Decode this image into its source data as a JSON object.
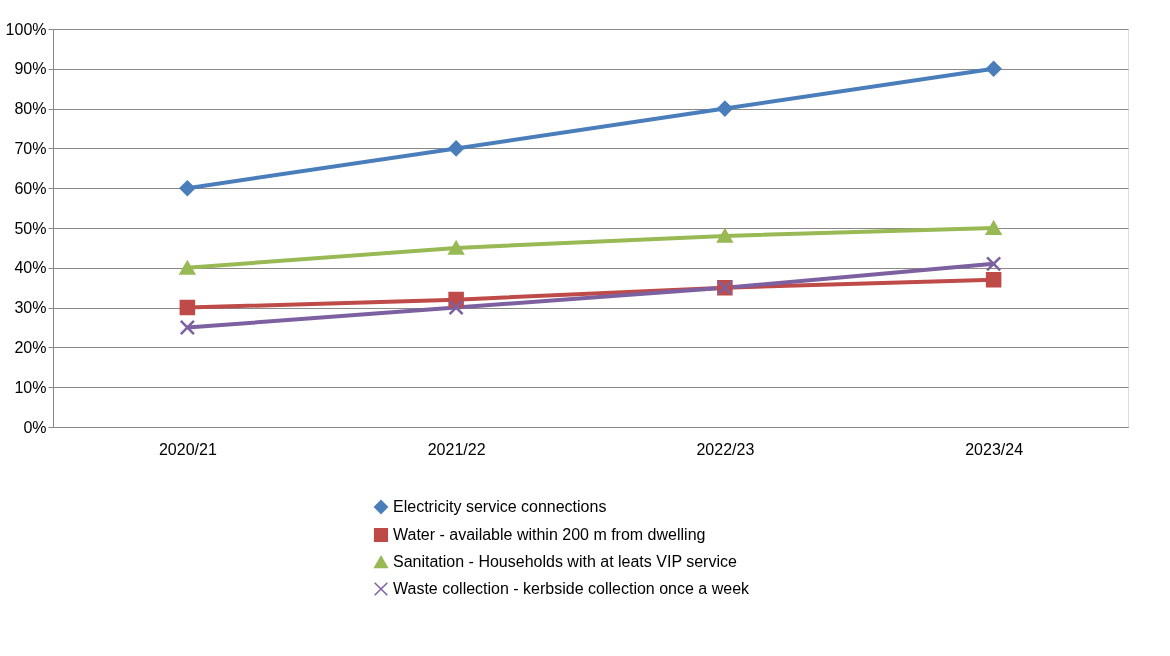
{
  "chart_data": {
    "type": "line",
    "categories": [
      "2020/21",
      "2021/22",
      "2022/23",
      "2023/24"
    ],
    "series": [
      {
        "name": "Electricity  service connections",
        "color": "#4a7ebb",
        "marker": "diamond",
        "values": [
          60,
          70,
          80,
          90
        ]
      },
      {
        "name": "Water - available within 200 m from dwelling",
        "color": "#be4b48",
        "marker": "square",
        "values": [
          30,
          32,
          35,
          37
        ]
      },
      {
        "name": "Sanitation - Households with at leats VIP service",
        "color": "#98b954",
        "marker": "triangle",
        "values": [
          40,
          45,
          48,
          50
        ]
      },
      {
        "name": "Waste collection - kerbside collection once a week",
        "color": "#7d60a0",
        "marker": "cross",
        "values": [
          25,
          30,
          35,
          41
        ]
      }
    ],
    "ylim": [
      0,
      100
    ],
    "yticks": [
      {
        "value": 0,
        "label": "0%"
      },
      {
        "value": 10,
        "label": "10%"
      },
      {
        "value": 20,
        "label": "20%"
      },
      {
        "value": 30,
        "label": "30%"
      },
      {
        "value": 40,
        "label": "40%"
      },
      {
        "value": 50,
        "label": "50%"
      },
      {
        "value": 60,
        "label": "60%"
      },
      {
        "value": 70,
        "label": "70%"
      },
      {
        "value": 80,
        "label": "80%"
      },
      {
        "value": 90,
        "label": "90%"
      },
      {
        "value": 100,
        "label": "100%"
      }
    ],
    "grid": "y",
    "legend": "bottom",
    "line_style": "solid"
  }
}
